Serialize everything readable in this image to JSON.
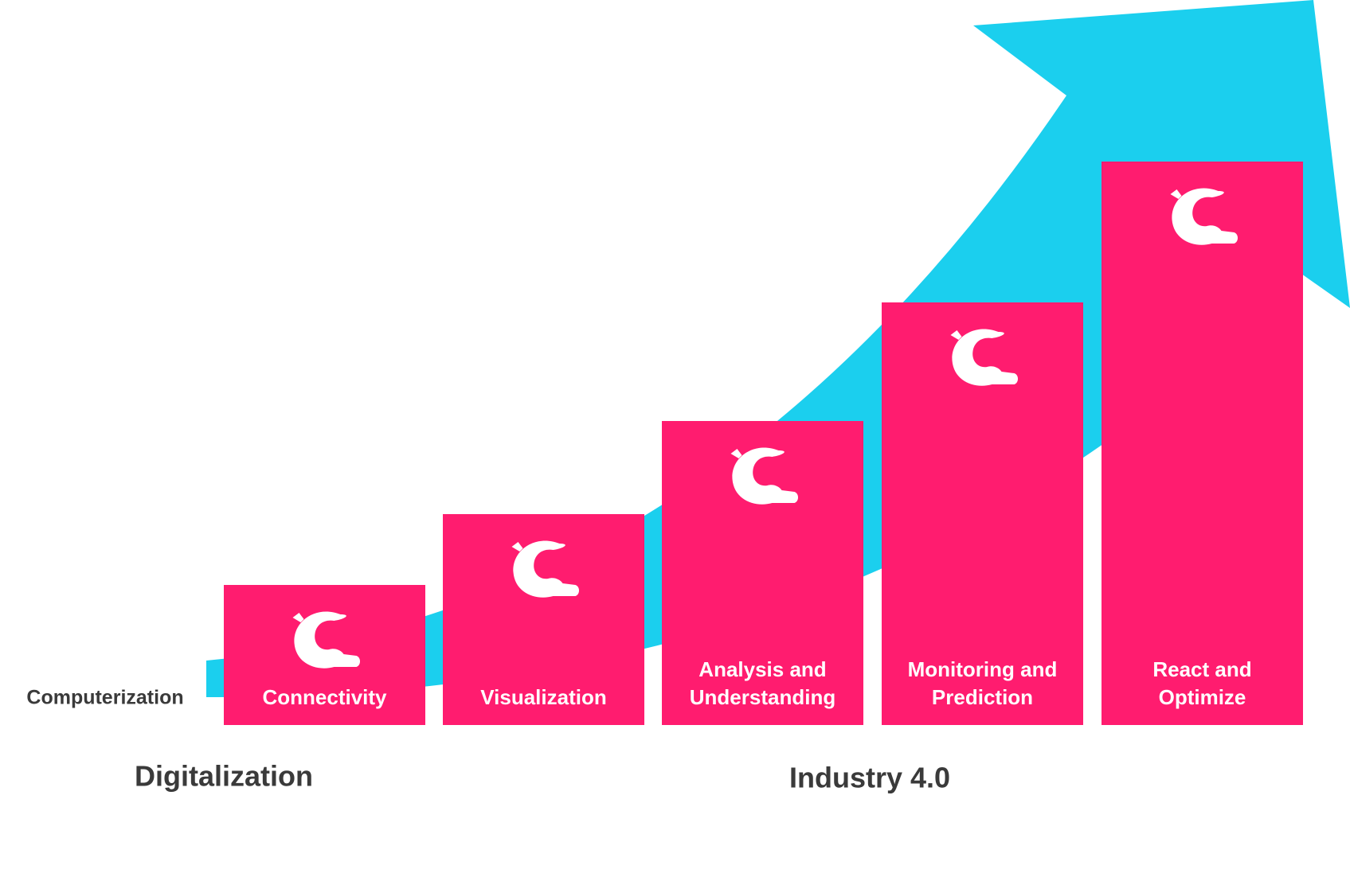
{
  "labels": {
    "left": "Computerization",
    "bottom_left": "Digitalization",
    "bottom_right": "Industry 4.0"
  },
  "steps": [
    {
      "lines": [
        "Connectivity"
      ]
    },
    {
      "lines": [
        "Visualization"
      ]
    },
    {
      "lines": [
        "Analysis and",
        "Understanding"
      ]
    },
    {
      "lines": [
        "Monitoring and",
        "Prediction"
      ]
    },
    {
      "lines": [
        "React and",
        "Optimize"
      ]
    }
  ]
}
